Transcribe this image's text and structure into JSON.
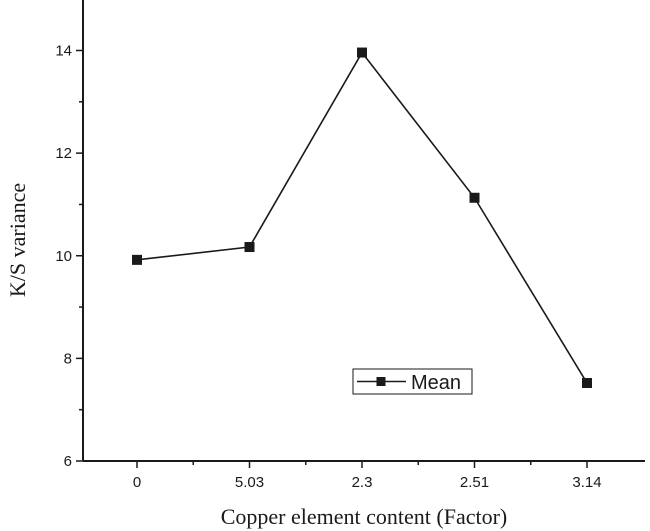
{
  "chart_data": {
    "type": "line",
    "title": "",
    "xlabel": "Copper element content (Factor)",
    "ylabel": "K/S variance",
    "categories": [
      "0",
      "5.03",
      "2.3",
      "2.51",
      "3.14"
    ],
    "series": [
      {
        "name": "Mean",
        "values": [
          9.92,
          10.17,
          13.96,
          11.13,
          7.52
        ],
        "color": "#1a1a1a",
        "marker": "square"
      }
    ],
    "ylim": [
      6,
      15
    ],
    "yticks": [
      "6",
      "8",
      "10",
      "12",
      "14"
    ],
    "grid": false,
    "legend_position": "lower-right"
  }
}
